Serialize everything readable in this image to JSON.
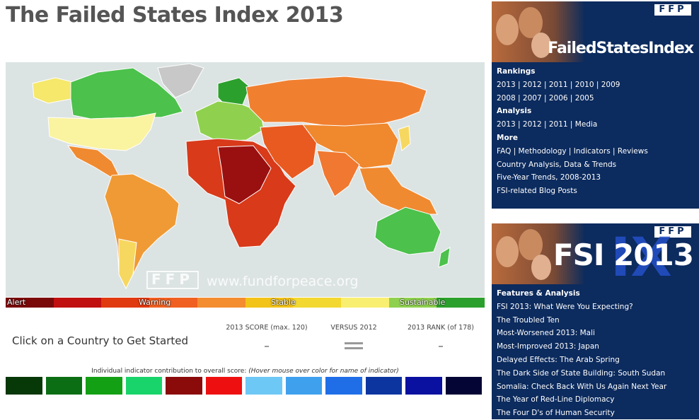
{
  "header": {
    "title": "The Failed States Index 2013"
  },
  "map": {
    "watermark_logo": "FFP",
    "watermark_url": "www.fundforpeace.org"
  },
  "legend": {
    "labels": [
      "Alert",
      "Warning",
      "Stable",
      "Sustainable"
    ]
  },
  "selection": {
    "prompt": "Click on a Country to Get Started",
    "stats": [
      {
        "label": "2013 SCORE (max. 120)",
        "value": "–"
      },
      {
        "label": "VERSUS 2012"
      },
      {
        "label": "2013 RANK (of 178)",
        "value": "–"
      }
    ]
  },
  "indicators": {
    "note": "Individual indicator contribution to overall score: ",
    "hint": "(Hover mouse over color for name of indicator)"
  },
  "sidebar": {
    "boxes": [
      {
        "logo": "FFP",
        "header_title": "FailedStatesIndex",
        "sections": [
          {
            "heading": "Rankings",
            "links": [
              "2013 | 2012 | 2011 | 2010 | 2009",
              "2008 | 2007 | 2006 | 2005"
            ]
          },
          {
            "heading": "Analysis",
            "links": [
              "2013 | 2012 | 2011 | Media"
            ]
          },
          {
            "heading": "More",
            "links": [
              "FAQ | Methodology | Indicators | Reviews",
              "Country Analysis, Data & Trends",
              "Five-Year Trends, 2008-2013",
              "FSI-related Blog Posts"
            ]
          }
        ]
      },
      {
        "logo": "FFP",
        "header_title": "FSI 2013",
        "header_overlay": "IX",
        "sections": [
          {
            "heading": "Features & Analysis",
            "links": [
              "FSI 2013: What Were You Expecting?",
              "The Troubled Ten",
              "Most-Worsened 2013: Mali",
              "Most-Improved 2013: Japan",
              "Delayed Effects: The Arab Spring",
              "The Dark Side of State Building: South Sudan",
              "Somalia: Check Back With Us Again Next Year",
              "The Year of Red-Line Diplomacy",
              "The Four D's of Human Security"
            ]
          }
        ]
      }
    ]
  }
}
